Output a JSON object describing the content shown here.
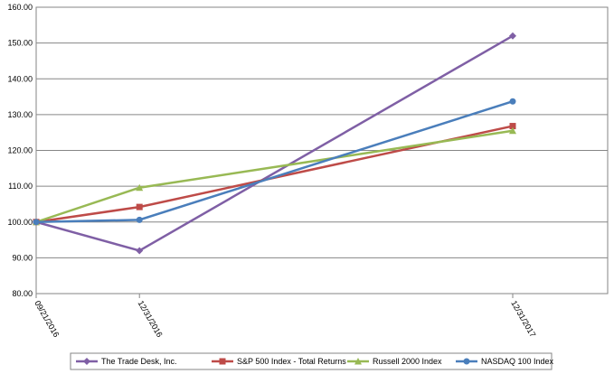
{
  "chart_data": {
    "type": "line",
    "x": [
      "09/21/2016",
      "12/31/2016",
      "12/31/2017"
    ],
    "series": [
      {
        "name": "The Trade Desk, Inc.",
        "color": "#7f5fa5",
        "marker": "diamond",
        "values": [
          100,
          92.0,
          152.0
        ]
      },
      {
        "name": "S&P 500 Index - Total Returns",
        "color": "#be4b48",
        "marker": "square",
        "values": [
          100,
          104.2,
          126.8
        ]
      },
      {
        "name": "Russell 2000 Index",
        "color": "#98b954",
        "marker": "triangle",
        "values": [
          100,
          109.6,
          125.5
        ]
      },
      {
        "name": "NASDAQ 100 Index",
        "color": "#4a7ebb",
        "marker": "circle",
        "values": [
          100,
          100.6,
          133.7
        ]
      }
    ],
    "ylim": [
      80,
      160
    ],
    "yticks": [
      {
        "value": 80,
        "label": "80.00"
      },
      {
        "value": 90,
        "label": "90.00"
      },
      {
        "value": 100,
        "label": "100.00"
      },
      {
        "value": 110,
        "label": "110.00"
      },
      {
        "value": 120,
        "label": "120.00"
      },
      {
        "value": 130,
        "label": "130.00"
      },
      {
        "value": 140,
        "label": "140.00"
      },
      {
        "value": 150,
        "label": "150.00"
      },
      {
        "value": 160,
        "label": "160.00"
      }
    ],
    "grid": true
  }
}
